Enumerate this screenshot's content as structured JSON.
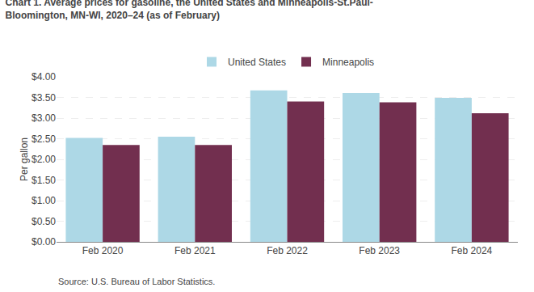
{
  "chart_data": {
    "type": "bar",
    "title": "Chart 1. Average prices for gasoline, the United States and Minneapolis-St.Paul-\nBloomington, MN-WI, 2020–24 (as of February)",
    "y_label": "Per gallon",
    "annotations": [
      "Source: U.S. Bureau of Labor Statistics."
    ],
    "categories": [
      "Feb 2020",
      "Feb 2021",
      "Feb 2022",
      "Feb 2023",
      "Feb 2024"
    ],
    "series": [
      {
        "name": "United States",
        "color": "#ADD8E6",
        "values": [
          2.52,
          2.55,
          3.67,
          3.61,
          3.49
        ]
      },
      {
        "name": "Minneapolis",
        "color": "#722F4F",
        "values": [
          2.35,
          2.35,
          3.4,
          3.38,
          3.12
        ]
      }
    ],
    "ylim": [
      0.0,
      4.0
    ],
    "yticks": [
      {
        "value": 0.0,
        "label": "$0.00"
      },
      {
        "value": 0.5,
        "label": "$0.50"
      },
      {
        "value": 1.0,
        "label": "$1.00"
      },
      {
        "value": 1.5,
        "label": "$1.50"
      },
      {
        "value": 2.0,
        "label": "$2.00"
      },
      {
        "value": 2.5,
        "label": "$2.50"
      },
      {
        "value": 3.0,
        "label": "$3.00"
      },
      {
        "value": 3.5,
        "label": "$3.50"
      },
      {
        "value": 4.0,
        "label": "$4.00"
      }
    ],
    "grid": true,
    "legend": "top"
  }
}
